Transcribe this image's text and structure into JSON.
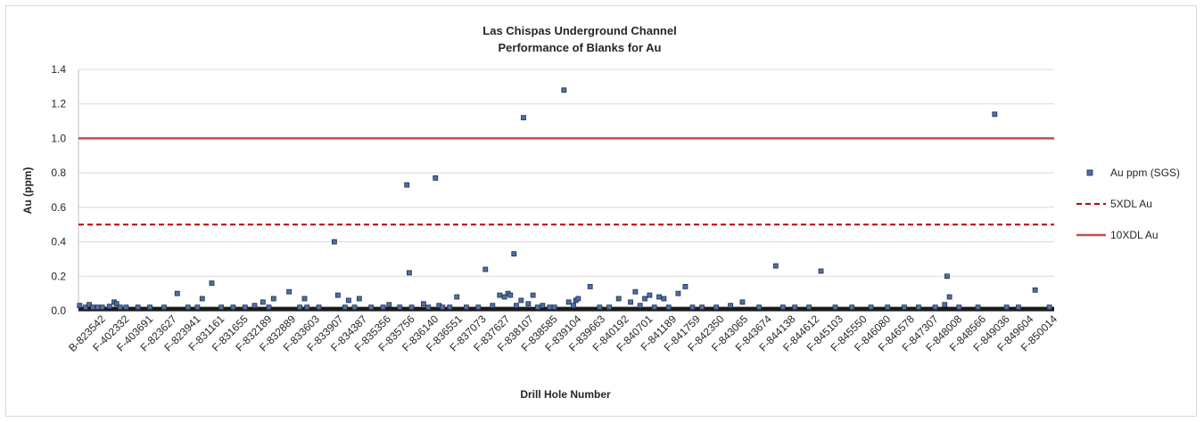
{
  "chart_data": {
    "type": "scatter",
    "title": "Las Chispas Underground Channel",
    "subtitle": "Performance of  Blanks for Au",
    "xlabel": "Drill Hole Number",
    "ylabel": "Au (ppm)",
    "ylim": [
      0,
      1.4
    ],
    "yticks": [
      "0.0",
      "0.2",
      "0.4",
      "0.6",
      "0.8",
      "1.0",
      "1.2",
      "1.4"
    ],
    "grid": true,
    "legend_position": "right",
    "categories": [
      "B-823542",
      "F-402332",
      "F-403691",
      "F-823627",
      "F-823941",
      "F-831161",
      "F-831655",
      "F-832189",
      "F-832889",
      "F-833603",
      "F-833907",
      "F-834387",
      "F-835356",
      "F-835756",
      "F-836140",
      "F-836551",
      "F-837073",
      "F-837627",
      "F-838107",
      "F-838585",
      "F-839104",
      "F-839663",
      "F-840192",
      "F-840701",
      "F-841189",
      "F-841759",
      "F-842350",
      "F-843065",
      "F-843674",
      "F-844138",
      "F-844612",
      "F-845103",
      "F-845550",
      "F-846080",
      "F-846578",
      "F-847307",
      "F-848008",
      "F-848566",
      "F-849036",
      "F-849604",
      "F-850014"
    ],
    "x_max": 41,
    "series": [
      {
        "name": "Au ppm (SGS)",
        "type": "points",
        "color": "#4f6fa8",
        "points": [
          [
            0.05,
            0.03
          ],
          [
            0.3,
            0.02
          ],
          [
            0.45,
            0.035
          ],
          [
            0.6,
            0.02
          ],
          [
            0.8,
            0.02
          ],
          [
            1.0,
            0.02
          ],
          [
            1.3,
            0.025
          ],
          [
            1.5,
            0.05
          ],
          [
            1.6,
            0.04
          ],
          [
            1.75,
            0.02
          ],
          [
            2.0,
            0.02
          ],
          [
            2.5,
            0.02
          ],
          [
            3.0,
            0.02
          ],
          [
            3.6,
            0.02
          ],
          [
            4.15,
            0.1
          ],
          [
            4.6,
            0.02
          ],
          [
            5.0,
            0.02
          ],
          [
            5.2,
            0.07
          ],
          [
            5.6,
            0.16
          ],
          [
            6.0,
            0.02
          ],
          [
            6.5,
            0.02
          ],
          [
            7.0,
            0.02
          ],
          [
            7.4,
            0.03
          ],
          [
            7.75,
            0.05
          ],
          [
            8.0,
            0.02
          ],
          [
            8.2,
            0.07
          ],
          [
            8.85,
            0.11
          ],
          [
            9.3,
            0.02
          ],
          [
            9.5,
            0.07
          ],
          [
            9.6,
            0.02
          ],
          [
            10.1,
            0.02
          ],
          [
            10.75,
            0.4
          ],
          [
            10.9,
            0.09
          ],
          [
            11.2,
            0.02
          ],
          [
            11.35,
            0.06
          ],
          [
            11.6,
            0.02
          ],
          [
            11.8,
            0.07
          ],
          [
            12.3,
            0.02
          ],
          [
            12.8,
            0.02
          ],
          [
            13.05,
            0.035
          ],
          [
            13.5,
            0.02
          ],
          [
            13.8,
            0.73
          ],
          [
            13.9,
            0.22
          ],
          [
            14.0,
            0.02
          ],
          [
            14.5,
            0.04
          ],
          [
            14.7,
            0.02
          ],
          [
            15.0,
            0.77
          ],
          [
            15.15,
            0.03
          ],
          [
            15.3,
            0.02
          ],
          [
            15.6,
            0.02
          ],
          [
            15.9,
            0.08
          ],
          [
            16.3,
            0.02
          ],
          [
            16.8,
            0.02
          ],
          [
            17.1,
            0.24
          ],
          [
            17.4,
            0.03
          ],
          [
            17.7,
            0.09
          ],
          [
            17.9,
            0.08
          ],
          [
            18.05,
            0.1
          ],
          [
            18.15,
            0.09
          ],
          [
            18.3,
            0.33
          ],
          [
            18.4,
            0.03
          ],
          [
            18.6,
            0.06
          ],
          [
            18.7,
            1.12
          ],
          [
            18.9,
            0.04
          ],
          [
            19.1,
            0.09
          ],
          [
            19.3,
            0.02
          ],
          [
            19.5,
            0.03
          ],
          [
            19.8,
            0.02
          ],
          [
            20.0,
            0.02
          ],
          [
            20.4,
            1.28
          ],
          [
            20.6,
            0.05
          ],
          [
            20.8,
            0.03
          ],
          [
            20.9,
            0.06
          ],
          [
            21.0,
            0.07
          ],
          [
            21.5,
            0.14
          ],
          [
            21.9,
            0.02
          ],
          [
            22.3,
            0.02
          ],
          [
            22.7,
            0.07
          ],
          [
            23.2,
            0.05
          ],
          [
            23.4,
            0.11
          ],
          [
            23.6,
            0.03
          ],
          [
            23.8,
            0.07
          ],
          [
            24.0,
            0.09
          ],
          [
            24.2,
            0.02
          ],
          [
            24.4,
            0.08
          ],
          [
            24.6,
            0.07
          ],
          [
            24.8,
            0.02
          ],
          [
            25.2,
            0.1
          ],
          [
            25.5,
            0.14
          ],
          [
            25.8,
            0.02
          ],
          [
            26.2,
            0.02
          ],
          [
            26.8,
            0.02
          ],
          [
            27.4,
            0.03
          ],
          [
            27.9,
            0.05
          ],
          [
            28.6,
            0.02
          ],
          [
            29.3,
            0.26
          ],
          [
            29.6,
            0.02
          ],
          [
            30.1,
            0.02
          ],
          [
            30.7,
            0.02
          ],
          [
            31.2,
            0.23
          ],
          [
            31.8,
            0.02
          ],
          [
            32.5,
            0.02
          ],
          [
            33.3,
            0.02
          ],
          [
            34.0,
            0.02
          ],
          [
            34.7,
            0.02
          ],
          [
            35.3,
            0.02
          ],
          [
            36.0,
            0.02
          ],
          [
            36.4,
            0.035
          ],
          [
            36.5,
            0.2
          ],
          [
            36.6,
            0.08
          ],
          [
            37.0,
            0.02
          ],
          [
            37.8,
            0.02
          ],
          [
            38.5,
            1.14
          ],
          [
            39.0,
            0.02
          ],
          [
            39.5,
            0.02
          ],
          [
            40.2,
            0.12
          ],
          [
            40.8,
            0.02
          ]
        ]
      },
      {
        "name": "5XDL Au",
        "type": "hline",
        "value": 0.5,
        "color": "#c00000",
        "dash": true
      },
      {
        "name": "10XDL Au",
        "type": "hline",
        "value": 1.0,
        "color": "#c0504d",
        "dash": false
      }
    ]
  }
}
